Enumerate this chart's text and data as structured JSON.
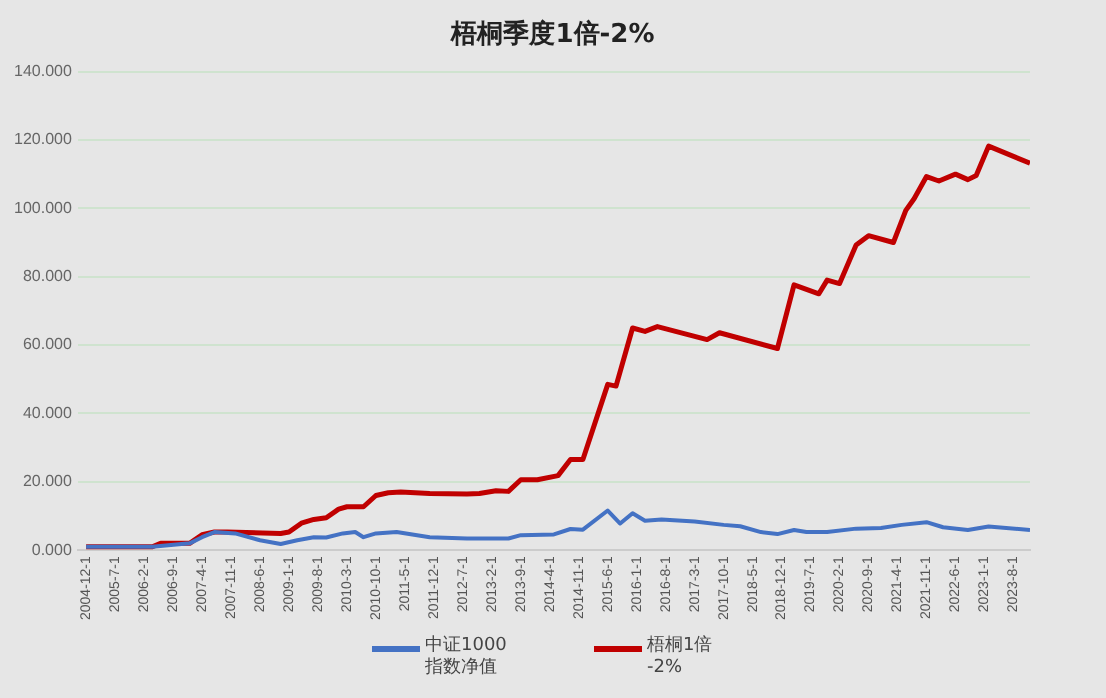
{
  "chart_data": {
    "type": "line",
    "title": "梧桐季度1倍-2%",
    "xlim": [
      "2004-10-01",
      "2023-12-01"
    ],
    "xticks": [
      {
        "value": "2004-12-01",
        "label": "2004-12-1"
      },
      {
        "value": "2005-07-01",
        "label": "2005-7-1"
      },
      {
        "value": "2006-02-01",
        "label": "2006-2-1"
      },
      {
        "value": "2006-09-01",
        "label": "2006-9-1"
      },
      {
        "value": "2007-04-01",
        "label": "2007-4-1"
      },
      {
        "value": "2007-11-01",
        "label": "2007-11-1"
      },
      {
        "value": "2008-06-01",
        "label": "2008-6-1"
      },
      {
        "value": "2009-01-01",
        "label": "2009-1-1"
      },
      {
        "value": "2009-08-01",
        "label": "2009-8-1"
      },
      {
        "value": "2010-03-01",
        "label": "2010-3-1"
      },
      {
        "value": "2010-10-01",
        "label": "2010-10-1"
      },
      {
        "value": "2011-05-01",
        "label": "2011-5-1"
      },
      {
        "value": "2011-12-01",
        "label": "2011-12-1"
      },
      {
        "value": "2012-07-01",
        "label": "2012-7-1"
      },
      {
        "value": "2013-02-01",
        "label": "2013-2-1"
      },
      {
        "value": "2013-09-01",
        "label": "2013-9-1"
      },
      {
        "value": "2014-04-01",
        "label": "2014-4-1"
      },
      {
        "value": "2014-11-01",
        "label": "2014-11-1"
      },
      {
        "value": "2015-06-01",
        "label": "2015-6-1"
      },
      {
        "value": "2016-01-01",
        "label": "2016-1-1"
      },
      {
        "value": "2016-08-01",
        "label": "2016-8-1"
      },
      {
        "value": "2017-03-01",
        "label": "2017-3-1"
      },
      {
        "value": "2017-10-01",
        "label": "2017-10-1"
      },
      {
        "value": "2018-05-01",
        "label": "2018-5-1"
      },
      {
        "value": "2018-12-01",
        "label": "2018-12-1"
      },
      {
        "value": "2019-07-01",
        "label": "2019-7-1"
      },
      {
        "value": "2020-02-01",
        "label": "2020-2-1"
      },
      {
        "value": "2020-09-01",
        "label": "2020-9-1"
      },
      {
        "value": "2021-04-01",
        "label": "2021-4-1"
      },
      {
        "value": "2021-11-01",
        "label": "2021-11-1"
      },
      {
        "value": "2022-06-01",
        "label": "2022-6-1"
      },
      {
        "value": "2023-01-01",
        "label": "2023-1-1"
      },
      {
        "value": "2023-08-01",
        "label": "2023-8-1"
      }
    ],
    "ylim": [
      0,
      140
    ],
    "yticks": [
      {
        "value": 0,
        "label": "0.000"
      },
      {
        "value": 20,
        "label": "20.000"
      },
      {
        "value": 40,
        "label": "40.000"
      },
      {
        "value": 60,
        "label": "60.000"
      },
      {
        "value": 80,
        "label": "80.000"
      },
      {
        "value": 100,
        "label": "100.000"
      },
      {
        "value": 120,
        "label": "120.000"
      },
      {
        "value": 140,
        "label": "140.000"
      }
    ],
    "grid": "y",
    "legend": "bottom",
    "marker": "none",
    "line_style": "solid",
    "series": [
      {
        "name": "中证1000 指数净值",
        "color": "#4472c4",
        "x": [
          "2004-12",
          "2006-04",
          "2007-01",
          "2007-04",
          "2007-07",
          "2007-12",
          "2008-06",
          "2008-11",
          "2009-03",
          "2009-07",
          "2009-10",
          "2010-02",
          "2010-05",
          "2010-07",
          "2010-10",
          "2011-03",
          "2011-11",
          "2012-08",
          "2013-06",
          "2013-09",
          "2014-05",
          "2014-09",
          "2014-12",
          "2015-06",
          "2015-09",
          "2015-12",
          "2016-03",
          "2016-07",
          "2017-03",
          "2017-10",
          "2018-02",
          "2018-07",
          "2018-11",
          "2019-03",
          "2019-06",
          "2019-11",
          "2020-06",
          "2020-12",
          "2021-05",
          "2021-11",
          "2022-03",
          "2022-09",
          "2023-02",
          "2023-12"
        ],
        "values": [
          1.0,
          1.0,
          2,
          3.8,
          5.3,
          4.9,
          2.9,
          1.8,
          2.9,
          3.8,
          3.7,
          4.9,
          5.3,
          3.8,
          4.9,
          5.3,
          3.8,
          3.4,
          3.4,
          4.4,
          4.6,
          6.2,
          6,
          11.6,
          7.8,
          10.8,
          8.6,
          9,
          8.4,
          7.4,
          7,
          5.3,
          4.7,
          5.9,
          5.3,
          5.3,
          6.3,
          6.5,
          7.4,
          8.2,
          6.7,
          5.9,
          6.9,
          5.9
        ]
      },
      {
        "name": "梧桐1倍 -2%",
        "color": "#c00000",
        "x": [
          "2004-12",
          "2006-04",
          "2006-06",
          "2007-01",
          "2007-04",
          "2007-07",
          "2007-10",
          "2008-11",
          "2009-01",
          "2009-04",
          "2009-07",
          "2009-10",
          "2010-01",
          "2010-03",
          "2010-07",
          "2010-10",
          "2011-01",
          "2011-04",
          "2011-11",
          "2012-08",
          "2012-11",
          "2013-03",
          "2013-06",
          "2013-09",
          "2014-01",
          "2014-06",
          "2014-09",
          "2014-12",
          "2015-06",
          "2015-08",
          "2015-12",
          "2016-03",
          "2016-06",
          "2017-06",
          "2017-09",
          "2018-11",
          "2019-03",
          "2019-09",
          "2019-11",
          "2020-02",
          "2020-06",
          "2020-09",
          "2021-03",
          "2021-06",
          "2021-08",
          "2021-11",
          "2022-02",
          "2022-06",
          "2022-09",
          "2022-11",
          "2023-02",
          "2023-12"
        ],
        "values": [
          1.0,
          1.0,
          2,
          2,
          4.5,
          5.3,
          5.3,
          4.9,
          5.3,
          7.9,
          9,
          9.5,
          12,
          12.7,
          12.7,
          16,
          16.8,
          17,
          16.6,
          16.4,
          16.6,
          17.4,
          17.2,
          20.6,
          20.6,
          21.8,
          26.5,
          26.5,
          48.5,
          48,
          65,
          64,
          65.4,
          61.6,
          63.6,
          59,
          77.6,
          75,
          79,
          78,
          89.3,
          92,
          90,
          99.4,
          102.8,
          109.3,
          108,
          110,
          108.4,
          109.6,
          118.2,
          113.2
        ]
      }
    ]
  }
}
